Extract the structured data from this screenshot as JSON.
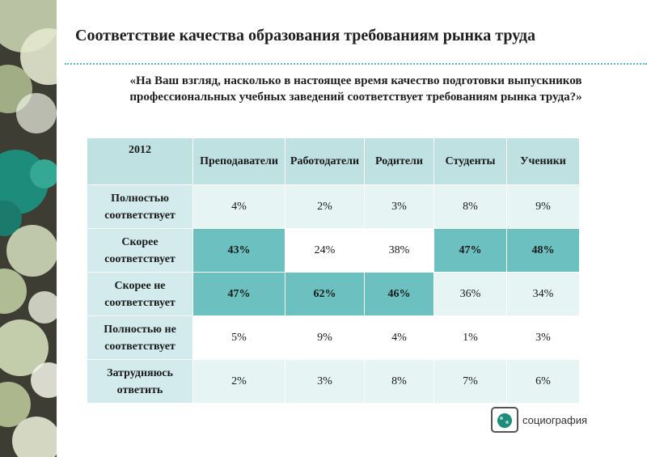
{
  "slide": {
    "title": "Соответствие качества образования требованиям рынка труда",
    "question_line1": "«На Ваш взгляд, насколько в настоящее время качество подготовки выпускников",
    "question_line2": "профессиональных учебных заведений соответствует требованиям рынка труда?»"
  },
  "table": {
    "headers": [
      "2012",
      "Преподаватели",
      "Работодатели",
      "Родители",
      "Студенты",
      "Ученики"
    ],
    "rows": [
      {
        "label": "Полностью соответствует",
        "values": [
          "4%",
          "2%",
          "3%",
          "8%",
          "9%"
        ],
        "highlight": [
          false,
          false,
          false,
          false,
          false
        ]
      },
      {
        "label": "Скорее соответствует",
        "values": [
          "43%",
          "24%",
          "38%",
          "47%",
          "48%"
        ],
        "highlight": [
          true,
          false,
          false,
          true,
          true
        ]
      },
      {
        "label": "Скорее не соответствует",
        "values": [
          "47%",
          "62%",
          "46%",
          "36%",
          "34%"
        ],
        "highlight": [
          true,
          true,
          true,
          false,
          false
        ]
      },
      {
        "label": "Полностью не соответствует",
        "values": [
          "5%",
          "9%",
          "4%",
          "1%",
          "3%"
        ],
        "highlight": [
          false,
          false,
          false,
          false,
          false
        ]
      },
      {
        "label": "Затрудняюсь ответить",
        "values": [
          "2%",
          "3%",
          "8%",
          "7%",
          "6%"
        ],
        "highlight": [
          false,
          false,
          false,
          false,
          false
        ]
      }
    ]
  },
  "footer": {
    "logo_text": "социография"
  },
  "colors": {
    "header_bg": "#bfe1e2",
    "highlight_bg": "#6cc0c0",
    "accent_teal": "#58b7b7"
  }
}
